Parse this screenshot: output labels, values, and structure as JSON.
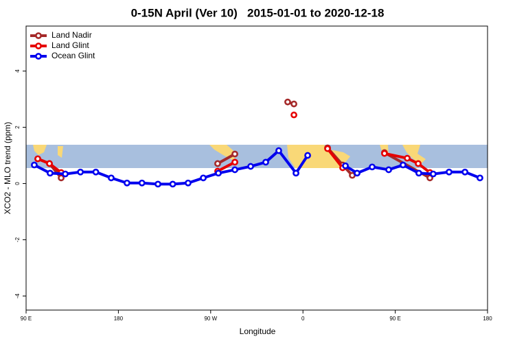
{
  "chart_data": {
    "type": "line",
    "title": "0-15N April (Ver 10)   2015-01-01 to 2020-12-18",
    "x_label": "Longitude",
    "y_label": "XCO2 - MLO trend (ppm)",
    "xlim": [
      90,
      540
    ],
    "ylim": [
      -4.5,
      5.6
    ],
    "xticks": [
      {
        "value": 90,
        "label": "90 E"
      },
      180,
      {
        "value": 270,
        "label": "90 W"
      },
      0,
      {
        "value": 450,
        "label": "90 E"
      },
      180
    ],
    "yticks": [
      -4,
      -2,
      0,
      2,
      4
    ],
    "legend": "top-left",
    "series": [
      {
        "name": "Land Nadir",
        "color": "#a52a2a",
        "x": [
          101.4,
          112.8,
          124.2,
          200,
          276.8,
          293.6,
          320,
          345.1,
          351.2,
          370,
          384,
          398.7,
          408.1,
          420,
          439.5,
          483.8
        ],
        "values": [
          0.88,
          0.71,
          0.2,
          null,
          0.71,
          1.05,
          null,
          2.9,
          2.83,
          null,
          1.27,
          0.66,
          0.29,
          null,
          1.1,
          0.2
        ]
      },
      {
        "name": "Land Glint",
        "color": "#e60000",
        "x": [
          101.4,
          112.8,
          124.2,
          200,
          276.8,
          293.6,
          320,
          351.2,
          370,
          384,
          398.7,
          420,
          439.5,
          461.7,
          472.4,
          483.8
        ],
        "values": [
          0.88,
          0.71,
          0.39,
          null,
          0.44,
          0.76,
          null,
          2.44,
          null,
          1.24,
          0.56,
          null,
          1.07,
          0.9,
          0.71,
          0.39
        ]
      },
      {
        "name": "Ocean Glint",
        "color": "#0000ee",
        "x": [
          98,
          113.4,
          128.2,
          143,
          158,
          173,
          188.4,
          203,
          218.6,
          233,
          248,
          262.8,
          277.5,
          293.6,
          309,
          323.7,
          336.4,
          353.2,
          364.6,
          380,
          401.4,
          412.8,
          427.5,
          443.6,
          457.6,
          473,
          487,
          502.5,
          518,
          532.6
        ],
        "values": [
          0.66,
          0.37,
          0.34,
          0.41,
          0.41,
          0.2,
          0.02,
          0.02,
          -0.02,
          -0.02,
          0.02,
          0.2,
          0.37,
          0.49,
          0.61,
          0.76,
          1.17,
          0.37,
          1.0,
          null,
          0.63,
          0.37,
          0.59,
          0.49,
          0.66,
          0.37,
          0.34,
          0.41,
          0.41,
          0.2
        ]
      }
    ]
  }
}
